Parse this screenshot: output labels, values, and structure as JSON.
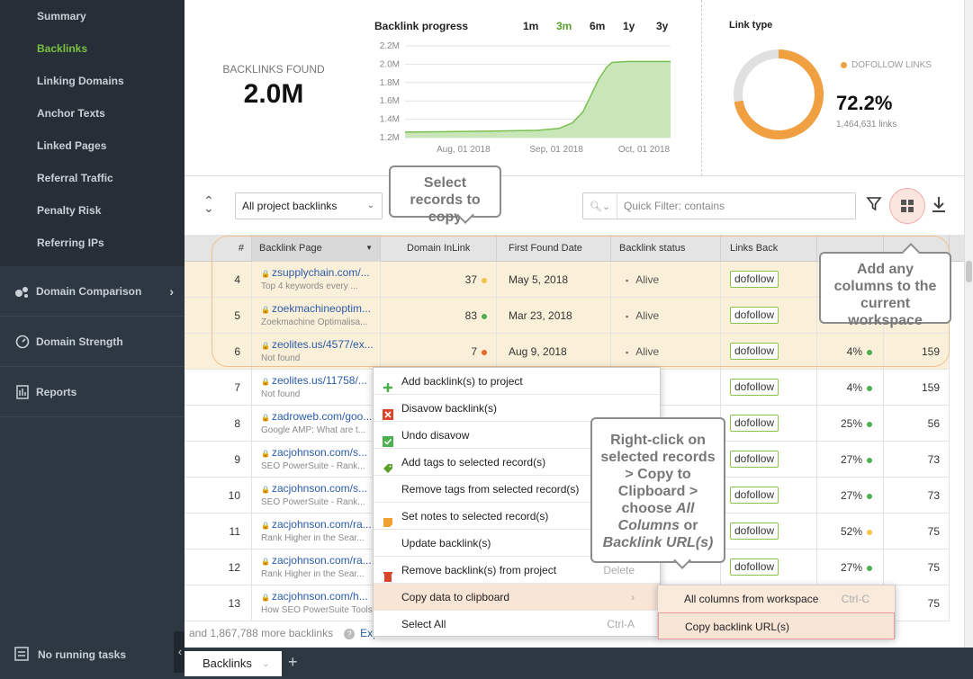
{
  "sidebar": {
    "items": [
      {
        "label": "Summary"
      },
      {
        "label": "Backlinks"
      },
      {
        "label": "Linking Domains"
      },
      {
        "label": "Anchor Texts"
      },
      {
        "label": "Linked Pages"
      },
      {
        "label": "Referral Traffic"
      },
      {
        "label": "Penalty Risk"
      },
      {
        "label": "Referring IPs"
      }
    ],
    "sections": [
      {
        "label": "Domain Comparison",
        "icon": "bubbles-icon"
      },
      {
        "label": "Domain Strength",
        "icon": "gauge-icon"
      },
      {
        "label": "Reports",
        "icon": "report-icon"
      }
    ],
    "tasks": "No running tasks"
  },
  "summary": {
    "found_label": "BACKLINKS FOUND",
    "found_value": "2.0M",
    "progress_title": "Backlink progress",
    "periods": [
      "1m",
      "3m",
      "6m",
      "1y",
      "3y"
    ],
    "link_type_title": "Link type",
    "dofollow_label": "DOFOLLOW LINKS",
    "dofollow_pct": "72.2%",
    "dofollow_links": "1,464,631 links"
  },
  "chart_data": {
    "type": "area",
    "title": "Backlink progress",
    "y_ticks": [
      "2.2M",
      "2.0M",
      "1.8M",
      "1.6M",
      "1.4M",
      "1.2M"
    ],
    "x_ticks": [
      "Aug, 01 2018",
      "Sep, 01 2018",
      "Oct, 01 2018"
    ],
    "ylim": [
      1.2,
      2.2
    ],
    "points": [
      [
        0,
        1.26
      ],
      [
        0.3,
        1.27
      ],
      [
        0.5,
        1.28
      ],
      [
        0.58,
        1.3
      ],
      [
        0.63,
        1.36
      ],
      [
        0.67,
        1.48
      ],
      [
        0.7,
        1.66
      ],
      [
        0.73,
        1.84
      ],
      [
        0.76,
        1.97
      ],
      [
        0.78,
        2.02
      ],
      [
        0.84,
        2.03
      ],
      [
        1,
        2.03
      ]
    ]
  },
  "donut_data": {
    "dofollow_fraction": 0.722
  },
  "toolbar": {
    "select_value": "All project backlinks",
    "filter_placeholder": "Quick Filter: contains"
  },
  "table": {
    "headers": [
      "#",
      "Backlink Page",
      "Domain InLink Rank",
      "First Found Date",
      "Backlink status",
      "Links Back"
    ],
    "rows": [
      {
        "num": "4",
        "url": "zsupplychain.com/...",
        "sub": "Top 4 keywords every ...",
        "rank": "37",
        "rank_dot": "yellow",
        "date": "May 5, 2018",
        "status": "Alive",
        "links": "dofollow",
        "pct": "",
        "pct_dot": "",
        "count": "",
        "selected": true
      },
      {
        "num": "5",
        "url": "zoekmachineoptim...",
        "sub": "Zoekmachine Optimalisa...",
        "rank": "83",
        "rank_dot": "green",
        "date": "Mar 23, 2018",
        "status": "Alive",
        "links": "dofollow",
        "pct": "",
        "pct_dot": "",
        "count": "",
        "selected": true
      },
      {
        "num": "6",
        "url": "zeolites.us/4577/ex...",
        "sub": "Not found",
        "rank": "7",
        "rank_dot": "orange",
        "date": "Aug 9, 2018",
        "status": "Alive",
        "links": "dofollow",
        "pct": "4%",
        "pct_dot": "green",
        "count": "159",
        "selected": true
      },
      {
        "num": "7",
        "url": "zeolites.us/11758/...",
        "sub": "Not found",
        "rank": "",
        "rank_dot": "",
        "date": "",
        "status": "",
        "links": "dofollow",
        "pct": "4%",
        "pct_dot": "green",
        "count": "159",
        "selected": false
      },
      {
        "num": "8",
        "url": "zadroweb.com/goo...",
        "sub": "Google AMP: What are t...",
        "rank": "",
        "rank_dot": "",
        "date": "",
        "status": "",
        "links": "dofollow",
        "pct": "25%",
        "pct_dot": "green",
        "count": "56",
        "selected": false
      },
      {
        "num": "9",
        "url": "zacjohnson.com/s...",
        "sub": "SEO PowerSuite - Rank...",
        "rank": "",
        "rank_dot": "",
        "date": "",
        "status": "",
        "links": "dofollow",
        "pct": "27%",
        "pct_dot": "green",
        "count": "73",
        "selected": false
      },
      {
        "num": "10",
        "url": "zacjohnson.com/s...",
        "sub": "SEO PowerSuite - Rank...",
        "rank": "",
        "rank_dot": "",
        "date": "",
        "status": "",
        "links": "dofollow",
        "pct": "27%",
        "pct_dot": "green",
        "count": "73",
        "selected": false
      },
      {
        "num": "11",
        "url": "zacjohnson.com/ra...",
        "sub": "Rank Higher in the Sear...",
        "rank": "",
        "rank_dot": "",
        "date": "",
        "status": "",
        "links": "dofollow",
        "pct": "52%",
        "pct_dot": "yellow",
        "count": "75",
        "selected": false
      },
      {
        "num": "12",
        "url": "zacjohnson.com/ra...",
        "sub": "Rank Higher in the Sear...",
        "rank": "",
        "rank_dot": "",
        "date": "",
        "status": "",
        "links": "dofollow",
        "pct": "27%",
        "pct_dot": "green",
        "count": "75",
        "selected": false
      },
      {
        "num": "13",
        "url": "zacjohnson.com/h...",
        "sub": "How SEO PowerSuite Tools...",
        "rank": "",
        "rank_dot": "",
        "date": "",
        "status": "",
        "links": "",
        "pct": "",
        "pct_dot": "",
        "count": "75",
        "selected": false
      }
    ],
    "more": "and 1,867,788 more backlinks",
    "export": "Export all links"
  },
  "context_menu": {
    "items": [
      {
        "label": "Add backlink(s) to project",
        "icon": "plus-icon",
        "shortcut": ""
      },
      {
        "label": "Disavow backlink(s)",
        "icon": "disavow-icon",
        "shortcut": ""
      },
      {
        "label": "Undo disavow",
        "icon": "check-icon",
        "shortcut": ""
      },
      {
        "label": "Add tags to selected record(s)",
        "icon": "tag-icon",
        "shortcut": ""
      },
      {
        "label": "Remove tags from selected record(s)",
        "icon": "",
        "shortcut": ""
      },
      {
        "label": "Set notes to selected record(s)",
        "icon": "note-icon",
        "shortcut": ""
      },
      {
        "label": "Update backlink(s)",
        "icon": "",
        "shortcut": ""
      },
      {
        "label": "Remove backlink(s) from project",
        "icon": "trash-icon",
        "shortcut": "Delete"
      },
      {
        "label": "Copy data to clipboard",
        "icon": "",
        "shortcut": "›"
      },
      {
        "label": "Select All",
        "icon": "",
        "shortcut": "Ctrl-A"
      }
    ],
    "submenu": [
      {
        "label": "All columns from workspace",
        "shortcut": "Ctrl-C"
      },
      {
        "label": "Copy backlink URL(s)",
        "shortcut": ""
      }
    ]
  },
  "callouts": {
    "select": "Select records to copy",
    "columns": "Add any columns to the current workspace",
    "rc_1": "Right-click on selected records > Copy to Clipboard > choose",
    "rc_2": "All Columns",
    "rc_3": "or",
    "rc_4": "Backlink URL(s)"
  },
  "tabs": {
    "active": "Backlinks"
  }
}
